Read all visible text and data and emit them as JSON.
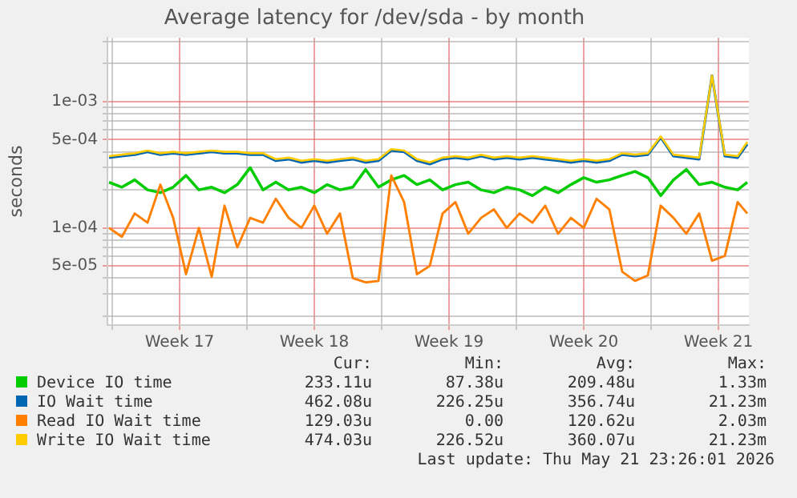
{
  "chart_data": {
    "type": "line",
    "title": "Average latency for /dev/sda - by month",
    "ylabel": "seconds",
    "log": "y",
    "grid": true,
    "legend": "bottom",
    "marker": "none",
    "line_style": "solid",
    "x": [
      "2026-04-18T20:00",
      "2026-04-19T12:00",
      "2026-04-20T04:00",
      "2026-04-20T20:00",
      "2026-04-21T12:00",
      "2026-04-22T04:00",
      "2026-04-22T20:00",
      "2026-04-23T12:00",
      "2026-04-24T04:00",
      "2026-04-24T20:00",
      "2026-04-25T12:00",
      "2026-04-26T04:00",
      "2026-04-26T20:00",
      "2026-04-27T12:00",
      "2026-04-28T04:00",
      "2026-04-28T20:00",
      "2026-04-29T12:00",
      "2026-04-30T04:00",
      "2026-04-30T20:00",
      "2026-05-01T12:00",
      "2026-05-02T04:00",
      "2026-05-02T20:00",
      "2026-05-03T12:00",
      "2026-05-04T04:00",
      "2026-05-04T20:00",
      "2026-05-05T12:00",
      "2026-05-06T04:00",
      "2026-05-06T20:00",
      "2026-05-07T12:00",
      "2026-05-08T04:00",
      "2026-05-08T20:00",
      "2026-05-09T12:00",
      "2026-05-10T04:00",
      "2026-05-10T20:00",
      "2026-05-11T12:00",
      "2026-05-12T04:00",
      "2026-05-12T20:00",
      "2026-05-13T12:00",
      "2026-05-14T04:00",
      "2026-05-14T20:00",
      "2026-05-15T12:00",
      "2026-05-16T04:00",
      "2026-05-16T20:00",
      "2026-05-17T12:00",
      "2026-05-18T04:00",
      "2026-05-18T20:00",
      "2026-05-19T12:00",
      "2026-05-20T04:00",
      "2026-05-20T20:00",
      "2026-05-21T12:00",
      "2026-05-22T00:00"
    ],
    "xlim": [
      "2026-04-18T18:00",
      "2026-05-22T02:00"
    ],
    "xticks": [
      {
        "value": "2026-04-19T00:00",
        "label": null
      },
      {
        "value": "2026-04-22T12:00",
        "label": "Week 17"
      },
      {
        "value": "2026-04-26T00:00",
        "label": null
      },
      {
        "value": "2026-04-29T12:00",
        "label": "Week 18"
      },
      {
        "value": "2026-05-03T00:00",
        "label": null
      },
      {
        "value": "2026-05-06T12:00",
        "label": "Week 19"
      },
      {
        "value": "2026-05-10T00:00",
        "label": null
      },
      {
        "value": "2026-05-13T12:00",
        "label": "Week 20"
      },
      {
        "value": "2026-05-17T00:00",
        "label": null
      },
      {
        "value": "2026-05-20T12:00",
        "label": "Week 21"
      }
    ],
    "ylim": [
      1.7e-05,
      0.0032
    ],
    "yticks": [
      {
        "value": 2e-05,
        "label": null
      },
      {
        "value": 3e-05,
        "label": null
      },
      {
        "value": 4e-05,
        "label": null
      },
      {
        "value": 5e-05,
        "label": "5e-05"
      },
      {
        "value": 6e-05,
        "label": null
      },
      {
        "value": 7e-05,
        "label": null
      },
      {
        "value": 8e-05,
        "label": null
      },
      {
        "value": 9e-05,
        "label": null
      },
      {
        "value": 0.0001,
        "label": "1e-04"
      },
      {
        "value": 0.0002,
        "label": null
      },
      {
        "value": 0.0003,
        "label": null
      },
      {
        "value": 0.0004,
        "label": null
      },
      {
        "value": 0.0005,
        "label": "5e-04"
      },
      {
        "value": 0.0006,
        "label": null
      },
      {
        "value": 0.0007,
        "label": null
      },
      {
        "value": 0.0008,
        "label": null
      },
      {
        "value": 0.0009,
        "label": null
      },
      {
        "value": 0.001,
        "label": "1e-03"
      },
      {
        "value": 0.002,
        "label": null
      },
      {
        "value": 0.003,
        "label": null
      }
    ],
    "series": [
      {
        "name": "Device IO time",
        "color": "#00cc00",
        "values": [
          0.00023,
          0.00021,
          0.00024,
          0.0002,
          0.00019,
          0.00021,
          0.00026,
          0.0002,
          0.00021,
          0.00019,
          0.00022,
          0.0003,
          0.0002,
          0.00023,
          0.0002,
          0.00021,
          0.00019,
          0.00022,
          0.0002,
          0.00021,
          0.00029,
          0.00021,
          0.00024,
          0.00026,
          0.00022,
          0.00024,
          0.0002,
          0.00022,
          0.00023,
          0.0002,
          0.00019,
          0.00021,
          0.0002,
          0.00018,
          0.00021,
          0.00019,
          0.00022,
          0.00025,
          0.00023,
          0.00024,
          0.00026,
          0.00028,
          0.00025,
          0.00018,
          0.00024,
          0.00029,
          0.00022,
          0.00023,
          0.00021,
          0.0002,
          0.00023
        ]
      },
      {
        "name": "IO Wait time",
        "color": "#0066b3",
        "values": [
          0.00036,
          0.00037,
          0.00038,
          0.0004,
          0.00038,
          0.00039,
          0.00038,
          0.00039,
          0.0004,
          0.00039,
          0.00039,
          0.00038,
          0.00038,
          0.00034,
          0.00035,
          0.00033,
          0.00034,
          0.00033,
          0.00034,
          0.00035,
          0.00033,
          0.00034,
          0.00041,
          0.0004,
          0.00034,
          0.00032,
          0.00035,
          0.00036,
          0.00035,
          0.00037,
          0.00035,
          0.00036,
          0.00035,
          0.00036,
          0.00035,
          0.00034,
          0.00033,
          0.00034,
          0.00033,
          0.00034,
          0.00038,
          0.00037,
          0.00038,
          0.00052,
          0.00037,
          0.00036,
          0.00035,
          0.0016,
          0.00037,
          0.00036,
          0.00046
        ]
      },
      {
        "name": "Read IO Wait time",
        "color": "#ff8000",
        "values": [
          0.0001,
          8.5e-05,
          0.00013,
          0.00011,
          0.00022,
          0.00012,
          4.3e-05,
          0.0001,
          4.1e-05,
          0.00015,
          7e-05,
          0.00012,
          0.00011,
          0.00017,
          0.00012,
          0.0001,
          0.00015,
          9e-05,
          0.00013,
          4e-05,
          3.7e-05,
          3.8e-05,
          0.00026,
          0.00016,
          4.3e-05,
          5e-05,
          0.00013,
          0.00016,
          9e-05,
          0.00012,
          0.00014,
          0.0001,
          0.00013,
          0.00011,
          0.00015,
          9e-05,
          0.00012,
          0.0001,
          0.00017,
          0.00014,
          4.5e-05,
          3.8e-05,
          4.2e-05,
          0.00015,
          0.00012,
          9e-05,
          0.00013,
          5.5e-05,
          6e-05,
          0.00016,
          0.00013
        ]
      },
      {
        "name": "Write IO Wait time",
        "color": "#ffcc00",
        "values": [
          0.00037,
          0.00038,
          0.00039,
          0.00041,
          0.00039,
          0.0004,
          0.00039,
          0.0004,
          0.00041,
          0.0004,
          0.0004,
          0.00039,
          0.00039,
          0.00035,
          0.00036,
          0.00034,
          0.00035,
          0.00034,
          0.00035,
          0.00036,
          0.00034,
          0.00035,
          0.00042,
          0.00041,
          0.00035,
          0.00033,
          0.00036,
          0.00037,
          0.00036,
          0.00038,
          0.00036,
          0.00037,
          0.00036,
          0.00037,
          0.00036,
          0.00035,
          0.00034,
          0.00035,
          0.00034,
          0.00035,
          0.00039,
          0.00038,
          0.00039,
          0.00053,
          0.00038,
          0.00037,
          0.00036,
          0.0016,
          0.00038,
          0.00037,
          0.00048
        ]
      }
    ],
    "annotations": [
      "Cur:",
      "Min:",
      "Avg:",
      "Max:",
      "233.11u",
      "87.38u",
      "209.48u",
      "1.33m",
      "462.08u",
      "226.25u",
      "356.74u",
      "21.23m",
      "129.03u",
      "0.00",
      "120.62u",
      "2.03m",
      "474.03u",
      "226.52u",
      "360.07u",
      "21.23m",
      "Last update: Thu May 21 23:26:01 2026"
    ]
  }
}
